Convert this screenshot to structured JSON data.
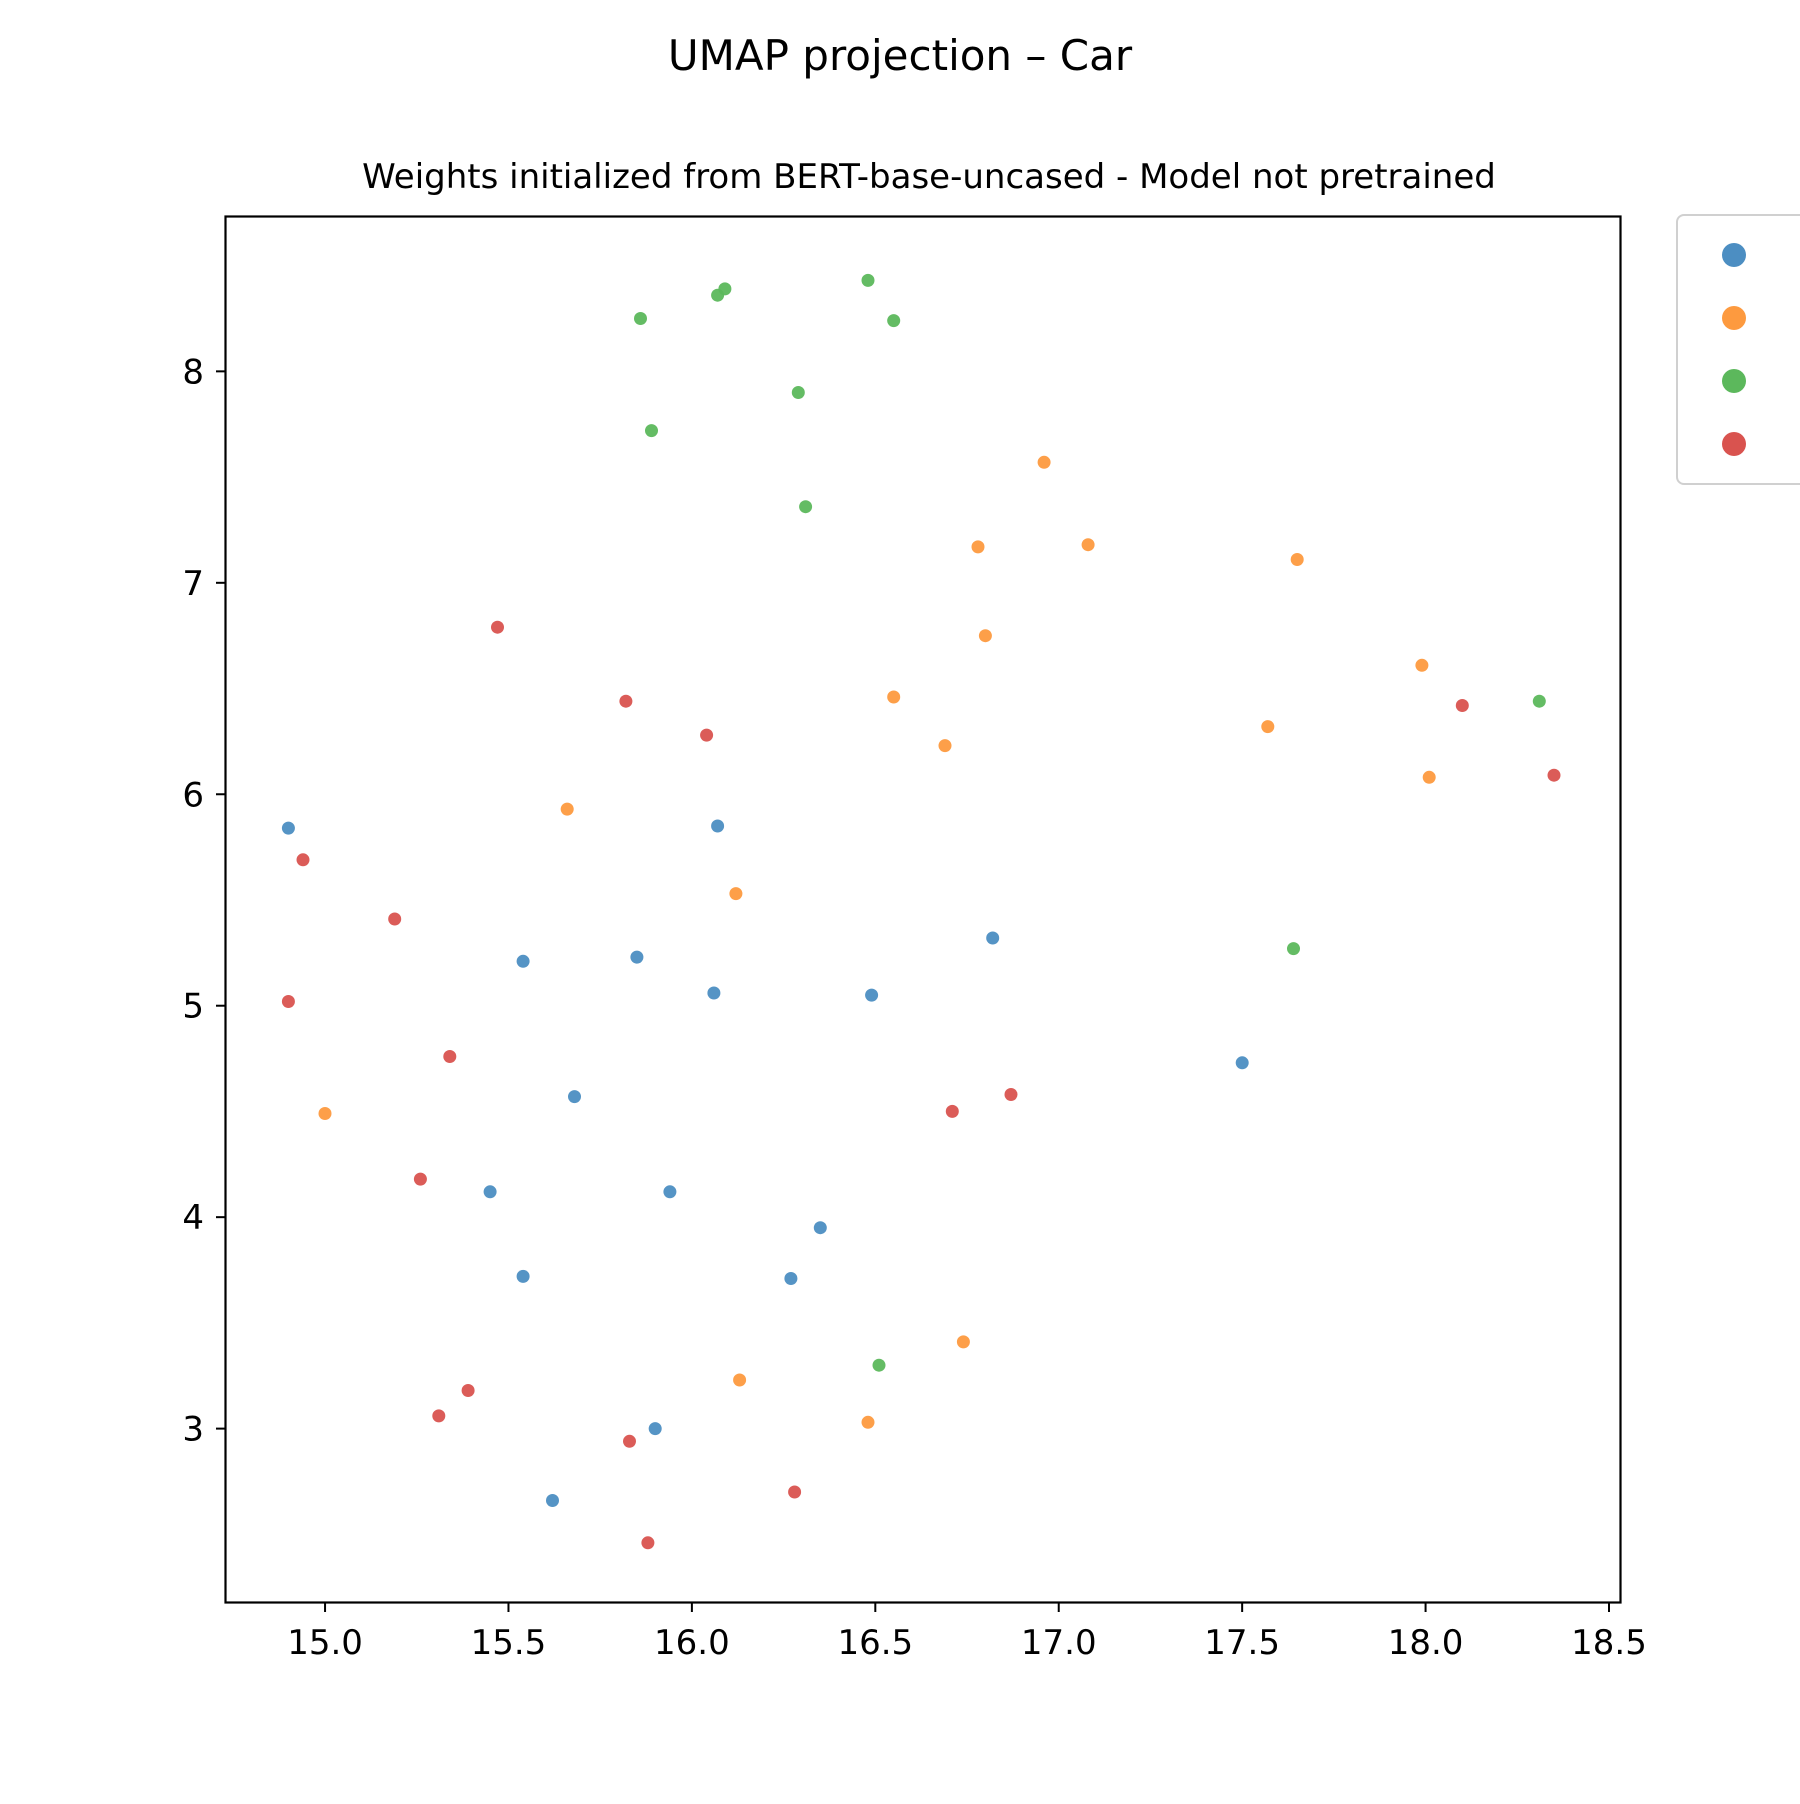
{
  "chart_data": {
    "type": "scatter",
    "title": "UMAP projection – Car",
    "subtitle": "Weights initialized from BERT-base-uncased - Model not pretrained",
    "xlabel": "",
    "ylabel": "",
    "xlim": [
      14.73,
      18.53
    ],
    "ylim": [
      2.18,
      8.73
    ],
    "xticks": [
      15.0,
      15.5,
      16.0,
      16.5,
      17.0,
      17.5,
      18.0,
      18.5
    ],
    "xtick_labels": [
      "15.0",
      "15.5",
      "16.0",
      "16.5",
      "17.0",
      "17.5",
      "18.0",
      "18.5"
    ],
    "yticks": [
      3,
      4,
      5,
      6,
      7,
      8
    ],
    "ytick_labels": [
      "3",
      "4",
      "5",
      "6",
      "7",
      "8"
    ],
    "grid": false,
    "legend_position": "outside-top-right",
    "series": [
      {
        "color": "#4c8ec2",
        "points": [
          {
            "x": 14.9,
            "y": 5.84
          },
          {
            "x": 16.07,
            "y": 5.85
          },
          {
            "x": 15.54,
            "y": 5.21
          },
          {
            "x": 15.85,
            "y": 5.23
          },
          {
            "x": 16.06,
            "y": 5.06
          },
          {
            "x": 16.49,
            "y": 5.05
          },
          {
            "x": 16.82,
            "y": 5.32
          },
          {
            "x": 17.5,
            "y": 4.73
          },
          {
            "x": 15.68,
            "y": 4.57
          },
          {
            "x": 15.45,
            "y": 4.12
          },
          {
            "x": 15.94,
            "y": 4.12
          },
          {
            "x": 16.35,
            "y": 3.95
          },
          {
            "x": 15.54,
            "y": 3.72
          },
          {
            "x": 16.27,
            "y": 3.71
          },
          {
            "x": 15.9,
            "y": 3.0
          },
          {
            "x": 15.62,
            "y": 2.66
          }
        ]
      },
      {
        "color": "#fd9a3f",
        "points": [
          {
            "x": 16.96,
            "y": 7.57
          },
          {
            "x": 16.78,
            "y": 7.17
          },
          {
            "x": 17.08,
            "y": 7.18
          },
          {
            "x": 17.65,
            "y": 7.11
          },
          {
            "x": 16.8,
            "y": 6.75
          },
          {
            "x": 16.55,
            "y": 6.46
          },
          {
            "x": 16.69,
            "y": 6.23
          },
          {
            "x": 17.57,
            "y": 6.32
          },
          {
            "x": 17.99,
            "y": 6.61
          },
          {
            "x": 18.01,
            "y": 6.08
          },
          {
            "x": 15.66,
            "y": 5.93
          },
          {
            "x": 16.12,
            "y": 5.53
          },
          {
            "x": 15.0,
            "y": 4.49
          },
          {
            "x": 16.74,
            "y": 3.41
          },
          {
            "x": 16.13,
            "y": 3.23
          },
          {
            "x": 16.48,
            "y": 3.03
          }
        ]
      },
      {
        "color": "#5cb85c",
        "points": [
          {
            "x": 15.86,
            "y": 8.25
          },
          {
            "x": 16.07,
            "y": 8.36
          },
          {
            "x": 16.09,
            "y": 8.39
          },
          {
            "x": 16.48,
            "y": 8.43
          },
          {
            "x": 16.55,
            "y": 8.24
          },
          {
            "x": 16.29,
            "y": 7.9
          },
          {
            "x": 15.89,
            "y": 7.72
          },
          {
            "x": 16.31,
            "y": 7.36
          },
          {
            "x": 18.31,
            "y": 6.44
          },
          {
            "x": 17.64,
            "y": 5.27
          },
          {
            "x": 16.51,
            "y": 3.3
          }
        ]
      },
      {
        "color": "#d9534f",
        "points": [
          {
            "x": 15.47,
            "y": 6.79
          },
          {
            "x": 15.82,
            "y": 6.44
          },
          {
            "x": 16.04,
            "y": 6.28
          },
          {
            "x": 18.1,
            "y": 6.42
          },
          {
            "x": 18.35,
            "y": 6.09
          },
          {
            "x": 14.94,
            "y": 5.69
          },
          {
            "x": 15.19,
            "y": 5.41
          },
          {
            "x": 14.9,
            "y": 5.02
          },
          {
            "x": 15.34,
            "y": 4.76
          },
          {
            "x": 16.71,
            "y": 4.5
          },
          {
            "x": 16.87,
            "y": 4.58
          },
          {
            "x": 15.26,
            "y": 4.18
          },
          {
            "x": 15.39,
            "y": 3.18
          },
          {
            "x": 15.31,
            "y": 3.06
          },
          {
            "x": 15.83,
            "y": 2.94
          },
          {
            "x": 16.28,
            "y": 2.7
          },
          {
            "x": 15.88,
            "y": 2.46
          }
        ]
      }
    ]
  }
}
